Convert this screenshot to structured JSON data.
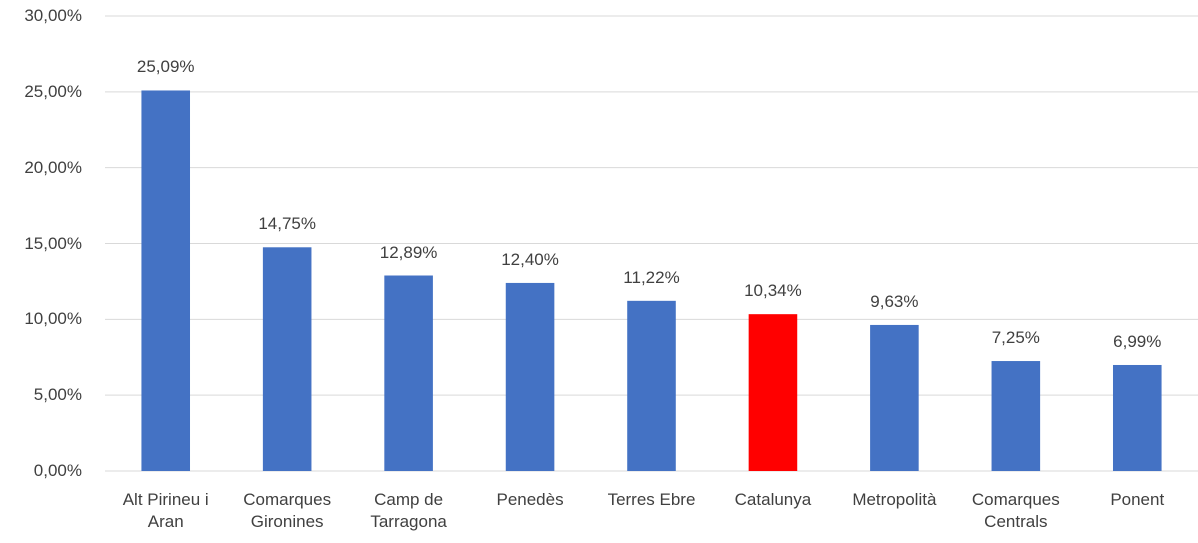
{
  "chart_data": {
    "type": "bar",
    "categories": [
      "Alt Pirineu i Aran",
      "Comarques Gironines",
      "Camp de Tarragona",
      "Penedès",
      "Terres Ebre",
      "Catalunya",
      "Metropolità",
      "Comarques Centrals",
      "Ponent"
    ],
    "values": [
      25.09,
      14.75,
      12.89,
      12.4,
      11.22,
      10.34,
      9.63,
      7.25,
      6.99
    ],
    "value_labels": [
      "25,09%",
      "14,75%",
      "12,89%",
      "12,40%",
      "11,22%",
      "10,34%",
      "9,63%",
      "7,25%",
      "6,99%"
    ],
    "colors": [
      "#4472c4",
      "#4472c4",
      "#4472c4",
      "#4472c4",
      "#4472c4",
      "#ff0000",
      "#4472c4",
      "#4472c4",
      "#4472c4"
    ],
    "ylim": [
      0,
      30
    ],
    "yticks": [
      {
        "value": 0,
        "label": "0,00%"
      },
      {
        "value": 5,
        "label": "5,00%"
      },
      {
        "value": 10,
        "label": "10,00%"
      },
      {
        "value": 15,
        "label": "15,00%"
      },
      {
        "value": 20,
        "label": "20,00%"
      },
      {
        "value": 25,
        "label": "25,00%"
      },
      {
        "value": 30,
        "label": "30,00%"
      }
    ],
    "grid": true
  }
}
